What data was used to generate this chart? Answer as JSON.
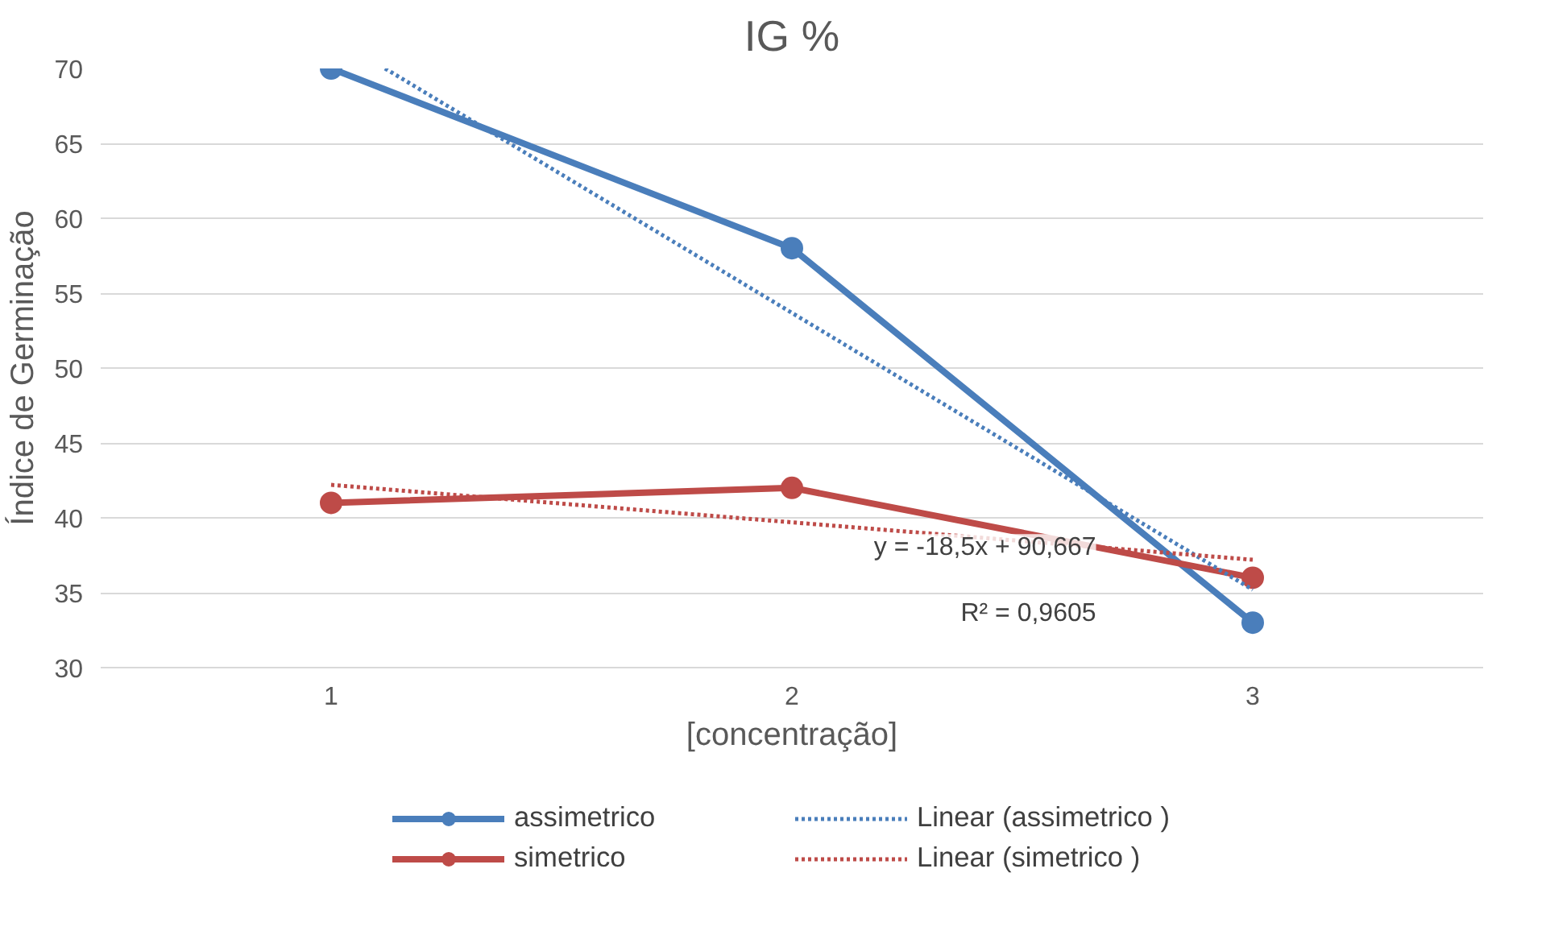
{
  "chart_data": {
    "type": "line",
    "title": "IG %",
    "xlabel": "[concentração]",
    "ylabel": "Índice de Germinação",
    "x": [
      1,
      2,
      3
    ],
    "xlim": [
      0.5,
      3.5
    ],
    "xticks": [
      1,
      2,
      3
    ],
    "ylim": [
      30,
      70
    ],
    "yticks": [
      30,
      35,
      40,
      45,
      50,
      55,
      60,
      65,
      70
    ],
    "grid": "y",
    "legend": "bottom",
    "marker": "circle",
    "line_style": "solid",
    "series": [
      {
        "name": "assimetrico",
        "color": "#4a7ebb",
        "values": [
          70,
          58,
          33
        ]
      },
      {
        "name": "simetrico",
        "color": "#be4b48",
        "values": [
          41,
          42,
          36
        ]
      },
      {
        "name": "Linear (assimetrico )",
        "color": "#4a7ebb",
        "x": [
          1.117,
          3
        ],
        "values": [
          70,
          35.2
        ],
        "marker": "none",
        "line_style": "dotted"
      },
      {
        "name": "Linear (simetrico )",
        "color": "#be4b48",
        "x": [
          1,
          3
        ],
        "values": [
          42.2,
          37.2
        ],
        "marker": "none",
        "line_style": "dotted"
      }
    ],
    "annotations": [
      "y = -18,5x + 90,667",
      "R² = 0,9605"
    ]
  }
}
